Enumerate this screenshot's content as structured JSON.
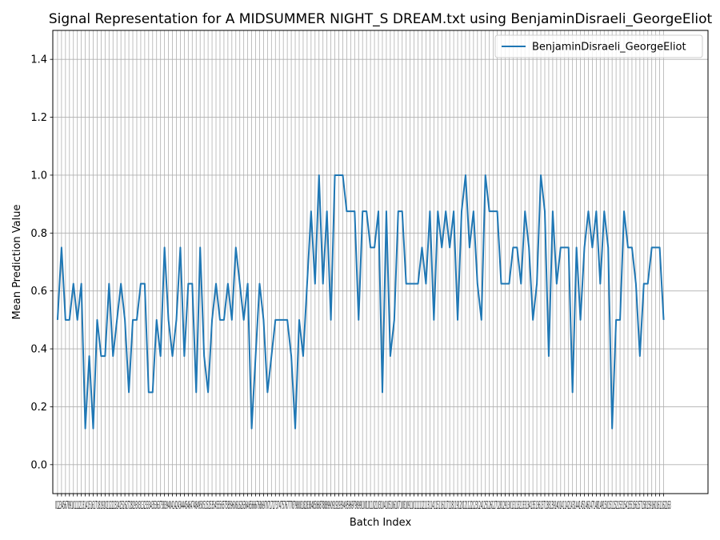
{
  "chart_data": {
    "type": "line",
    "title": "Signal Representation for A MIDSUMMER NIGHT_S DREAM.txt using BenjaminDisraeli_GeorgeEliot",
    "xlabel": "Batch Index",
    "ylabel": "Mean Prediction Value",
    "ylim": [
      -0.1,
      1.5
    ],
    "xlim": [
      -1.2,
      164.2
    ],
    "grid": true,
    "legend_position": "top-right",
    "y_ticks": [
      "0.0",
      "0.2",
      "0.4",
      "0.6",
      "0.8",
      "1.0",
      "1.2",
      "1.4"
    ],
    "x_ticks_text": "0123456789101112131415161718192021222324252627282930313233343536373839404142434445464748495051525354555657585960616263646566676869707172737475767778798081828384858687888990919293949596979899100101102103104105106107108109110111112113114115116117118119120121122123124125126127128129130131132133134135136137138139140141142143144145146147148149150151152153154155156157158159160161162163",
    "series": [
      {
        "name": "BenjaminDisraeli_GeorgeEliot",
        "color": "#1f77b4",
        "x_start": 0,
        "values": [
          0.5,
          0.75,
          0.5,
          0.5,
          0.625,
          0.5,
          0.625,
          0.125,
          0.375,
          0.125,
          0.5,
          0.375,
          0.375,
          0.625,
          0.375,
          0.5,
          0.625,
          0.5,
          0.25,
          0.5,
          0.5,
          0.625,
          0.625,
          0.25,
          0.25,
          0.5,
          0.375,
          0.75,
          0.5,
          0.375,
          0.5,
          0.75,
          0.375,
          0.625,
          0.625,
          0.25,
          0.75,
          0.375,
          0.25,
          0.5,
          0.625,
          0.5,
          0.5,
          0.625,
          0.5,
          0.75,
          0.625,
          0.5,
          0.625,
          0.125,
          0.375,
          0.625,
          0.5,
          0.25,
          0.375,
          0.5,
          0.5,
          0.5,
          0.5,
          0.375,
          0.125,
          0.5,
          0.375,
          0.625,
          0.875,
          0.625,
          1.0,
          0.625,
          0.875,
          0.5,
          1.0,
          1.0,
          1.0,
          0.875,
          0.875,
          0.875,
          0.5,
          0.875,
          0.875,
          0.75,
          0.75,
          0.875,
          0.25,
          0.875,
          0.375,
          0.5,
          0.875,
          0.875,
          0.625,
          0.625,
          0.625,
          0.625,
          0.75,
          0.625,
          0.875,
          0.5,
          0.875,
          0.75,
          0.875,
          0.75,
          0.875,
          0.5,
          0.875,
          1.0,
          0.75,
          0.875,
          0.625,
          0.5,
          1.0,
          0.875,
          0.875,
          0.875,
          0.625,
          0.625,
          0.625,
          0.75,
          0.75,
          0.625,
          0.875,
          0.75,
          0.5,
          0.625,
          1.0,
          0.875,
          0.375,
          0.875,
          0.625,
          0.75,
          0.75,
          0.75,
          0.25,
          0.75,
          0.5,
          0.75,
          0.875,
          0.75,
          0.875,
          0.625,
          0.875,
          0.75,
          0.125,
          0.5,
          0.5,
          0.875,
          0.75,
          0.75,
          0.625,
          0.375,
          0.625,
          0.625,
          0.75,
          0.75,
          0.75,
          0.5
        ]
      }
    ]
  }
}
